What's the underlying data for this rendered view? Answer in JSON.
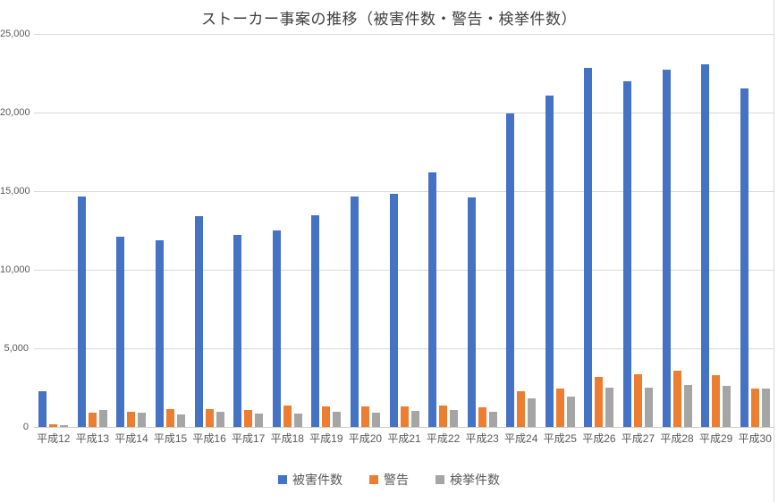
{
  "chart_data": {
    "type": "bar",
    "title": "ストーカー事案の推移（被害件数・警告・検挙件数）",
    "categories": [
      "平成12",
      "平成13",
      "平成14",
      "平成15",
      "平成16",
      "平成17",
      "平成18",
      "平成19",
      "平成20",
      "平成21",
      "平成22",
      "平成23",
      "平成24",
      "平成25",
      "平成26",
      "平成27",
      "平成28",
      "平成29",
      "平成30"
    ],
    "series": [
      {
        "name": "被害件数",
        "color": "#4472C4",
        "values": [
          2280,
          14662,
          12125,
          11900,
          13403,
          12220,
          12501,
          13463,
          14657,
          14823,
          16176,
          14618,
          19920,
          21089,
          22823,
          21968,
          22737,
          23079,
          21556
        ]
      },
      {
        "name": "警告",
        "color": "#ED7D31",
        "values": [
          143,
          894,
          982,
          1115,
          1141,
          1063,
          1384,
          1335,
          1302,
          1293,
          1343,
          1270,
          2284,
          2452,
          3171,
          3376,
          3562,
          3270,
          2451
        ]
      },
      {
        "name": "検挙件数",
        "color": "#A5A5A5",
        "values": [
          110,
          1060,
          930,
          780,
          980,
          830,
          870,
          980,
          930,
          1020,
          1080,
          970,
          1835,
          1930,
          2480,
          2500,
          2690,
          2600,
          2440
        ]
      }
    ],
    "xlabel": "",
    "ylabel": "",
    "ylim": [
      0,
      25000
    ],
    "ytick_interval": 5000,
    "ytick_labels": [
      "0",
      "5,000",
      "10,000",
      "15,000",
      "20,000",
      "25,000"
    ],
    "grid": true,
    "legend_position": "bottom",
    "colors": {
      "gridline": "#D9D9D9",
      "axis_text": "#595959",
      "title_text": "#404040",
      "background": "#FFFFFF"
    }
  }
}
